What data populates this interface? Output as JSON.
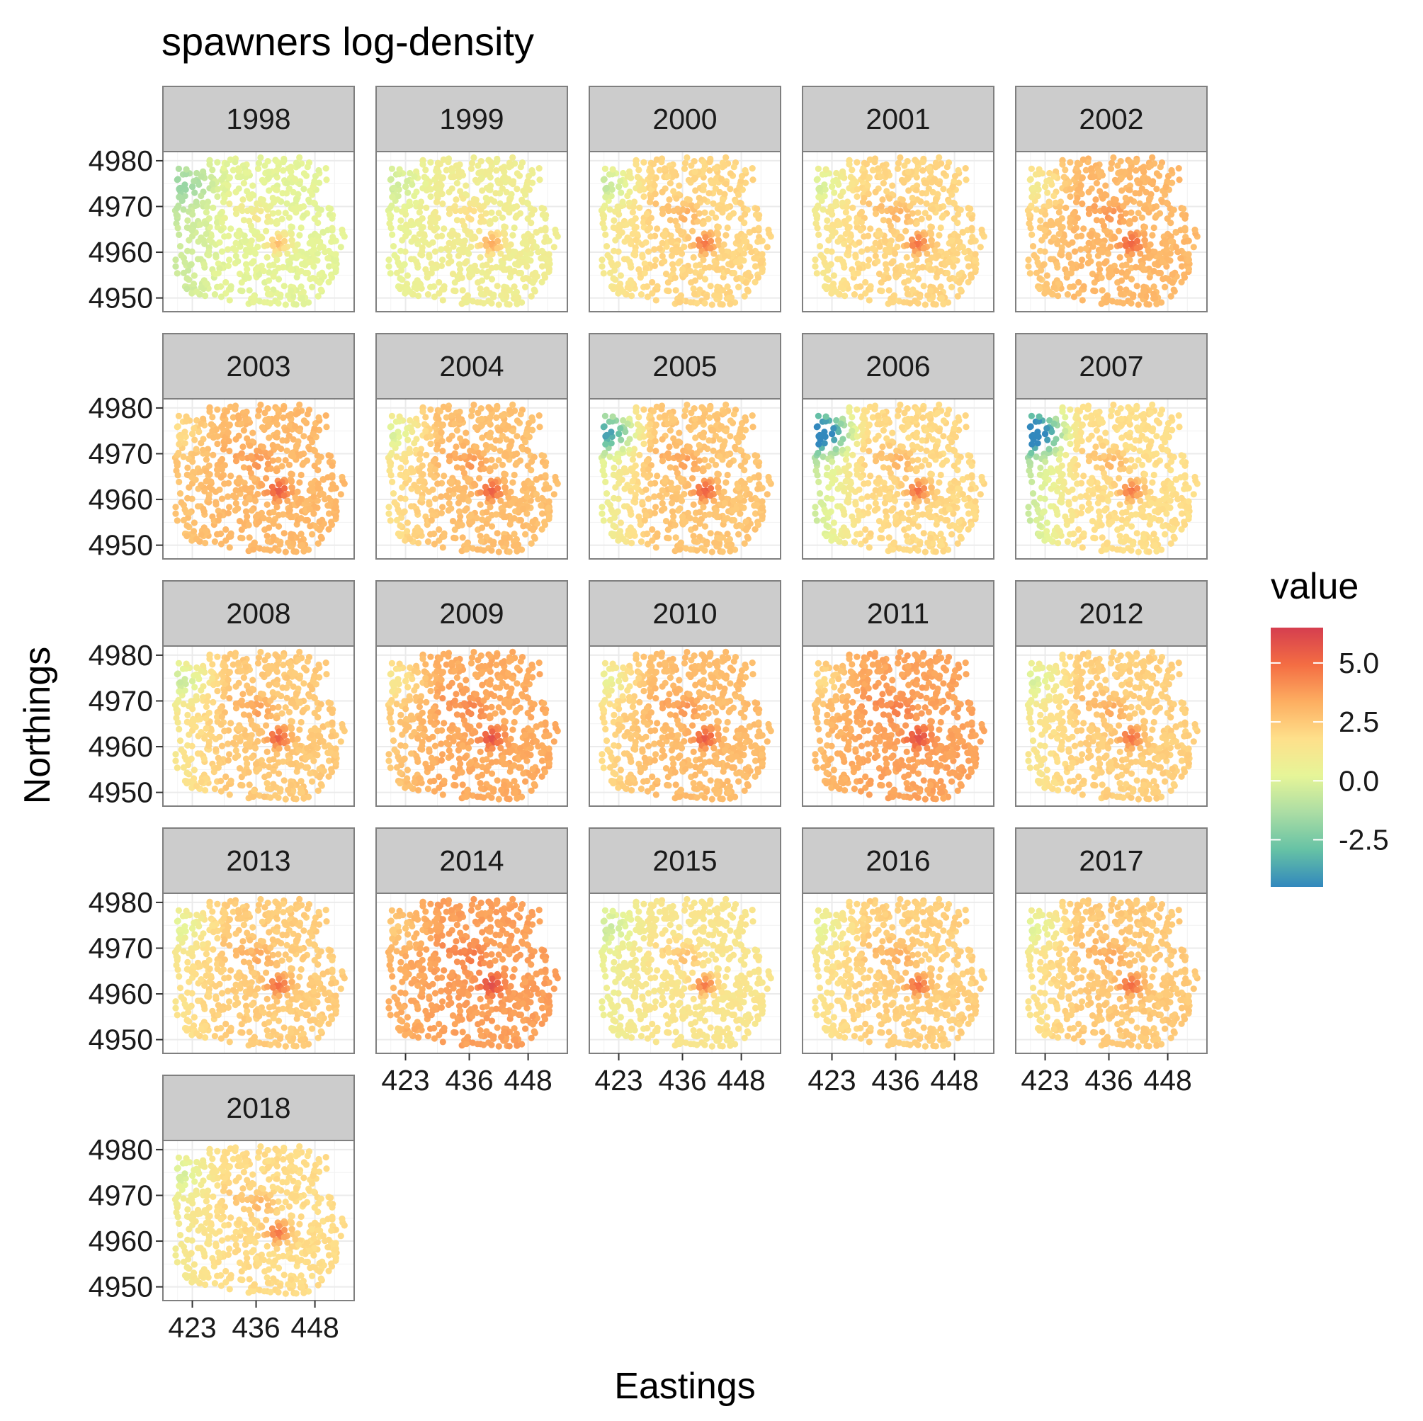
{
  "chart_data": {
    "type": "scatter",
    "title": "spawners log-density",
    "xlabel": "Eastings",
    "ylabel": "Northings",
    "facet_var": "year",
    "facets": [
      "1998",
      "1999",
      "2000",
      "2001",
      "2002",
      "2003",
      "2004",
      "2005",
      "2006",
      "2007",
      "2008",
      "2009",
      "2010",
      "2011",
      "2012",
      "2013",
      "2014",
      "2015",
      "2016",
      "2017",
      "2018"
    ],
    "x_ticks": [
      423,
      436,
      448
    ],
    "y_ticks": [
      4950,
      4960,
      4970,
      4980
    ],
    "xlim": [
      417,
      456
    ],
    "ylim": [
      4947,
      4982
    ],
    "legend": {
      "title": "value",
      "position": "right",
      "ticks": [
        "5.0",
        "2.5",
        "0.0",
        "-2.5"
      ],
      "tick_values": [
        5.0,
        2.5,
        0.0,
        -2.5
      ],
      "range": [
        -4.5,
        6.5
      ],
      "colors": [
        "#3288bd",
        "#66c2a5",
        "#abdda4",
        "#e6f598",
        "#fee08b",
        "#fdae61",
        "#f46d43",
        "#d53e4f"
      ]
    },
    "grid": true,
    "facet_levels": {
      "1998": {
        "base": 0.2,
        "west": -0.6,
        "nw": -1.2,
        "hot": 2.8
      },
      "1999": {
        "base": 0.8,
        "west": 0.3,
        "nw": 0.0,
        "hot": 3.5
      },
      "2000": {
        "base": 2.1,
        "west": 1.0,
        "nw": 0.3,
        "hot": 4.8
      },
      "2001": {
        "base": 2.1,
        "west": 1.2,
        "nw": 0.6,
        "hot": 4.8
      },
      "2002": {
        "base": 3.0,
        "west": 2.3,
        "nw": 1.5,
        "hot": 5.2
      },
      "2003": {
        "base": 3.0,
        "west": 2.6,
        "nw": 2.2,
        "hot": 5.5
      },
      "2004": {
        "base": 2.8,
        "west": 1.5,
        "nw": 1.0,
        "hot": 5.4
      },
      "2005": {
        "base": 2.6,
        "west": 0.4,
        "nw": -2.0,
        "hot": 5.4
      },
      "2006": {
        "base": 2.0,
        "west": -0.6,
        "nw": -3.8,
        "hot": 5.0
      },
      "2007": {
        "base": 1.8,
        "west": -0.8,
        "nw": -4.0,
        "hot": 4.8
      },
      "2008": {
        "base": 2.5,
        "west": 1.2,
        "nw": 0.6,
        "hot": 5.4
      },
      "2009": {
        "base": 3.4,
        "west": 2.4,
        "nw": 2.0,
        "hot": 5.8
      },
      "2010": {
        "base": 2.9,
        "west": 1.8,
        "nw": 1.4,
        "hot": 5.5
      },
      "2011": {
        "base": 3.6,
        "west": 2.8,
        "nw": 2.5,
        "hot": 6.0
      },
      "2012": {
        "base": 2.3,
        "west": 1.2,
        "nw": 0.8,
        "hot": 5.0
      },
      "2013": {
        "base": 2.4,
        "west": 1.4,
        "nw": 1.0,
        "hot": 5.0
      },
      "2014": {
        "base": 3.7,
        "west": 3.2,
        "nw": 2.8,
        "hot": 6.0
      },
      "2015": {
        "base": 1.4,
        "west": 0.6,
        "nw": 0.2,
        "hot": 4.6
      },
      "2016": {
        "base": 2.3,
        "west": 1.4,
        "nw": 1.0,
        "hot": 5.0
      },
      "2017": {
        "base": 2.5,
        "west": 1.4,
        "nw": 1.0,
        "hot": 5.1
      },
      "2018": {
        "base": 1.9,
        "west": 1.0,
        "nw": 0.6,
        "hot": 4.8
      }
    }
  }
}
